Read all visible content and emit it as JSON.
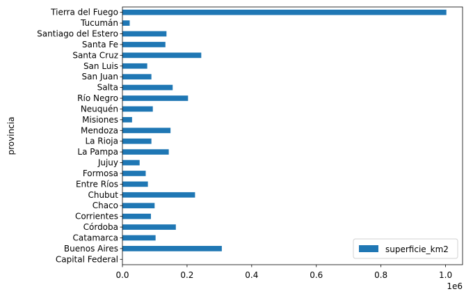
{
  "chart_data": {
    "type": "bar",
    "orientation": "horizontal",
    "categories": [
      "Capital Federal",
      "Buenos Aires",
      "Catamarca",
      "Córdoba",
      "Corrientes",
      "Chaco",
      "Chubut",
      "Entre Ríos",
      "Formosa",
      "Jujuy",
      "La Pampa",
      "La Rioja",
      "Mendoza",
      "Misiones",
      "Neuquén",
      "Río Negro",
      "Salta",
      "San Juan",
      "San Luis",
      "Santa Cruz",
      "Santa Fe",
      "Santiago del Estero",
      "Tucumán",
      "Tierra del Fuego"
    ],
    "series": [
      {
        "name": "superficie_km2",
        "color": "#1f77b4",
        "values": [
          203,
          307571,
          102602,
          165321,
          88199,
          99633,
          224686,
          78781,
          72066,
          53219,
          143440,
          89680,
          148827,
          29801,
          94078,
          203013,
          155488,
          89651,
          76748,
          243943,
          133007,
          136351,
          22524,
          1002445
        ]
      }
    ],
    "xlabel": "",
    "ylabel": "provincia",
    "x_scale_label": "1e6",
    "xlim": [
      0,
      1052567
    ],
    "x_ticks": [
      0,
      200000,
      400000,
      600000,
      800000,
      1000000
    ],
    "x_tick_labels": [
      "0.0",
      "0.2",
      "0.4",
      "0.6",
      "0.8",
      "1.0"
    ],
    "grid": false,
    "legend_position": "lower right"
  }
}
